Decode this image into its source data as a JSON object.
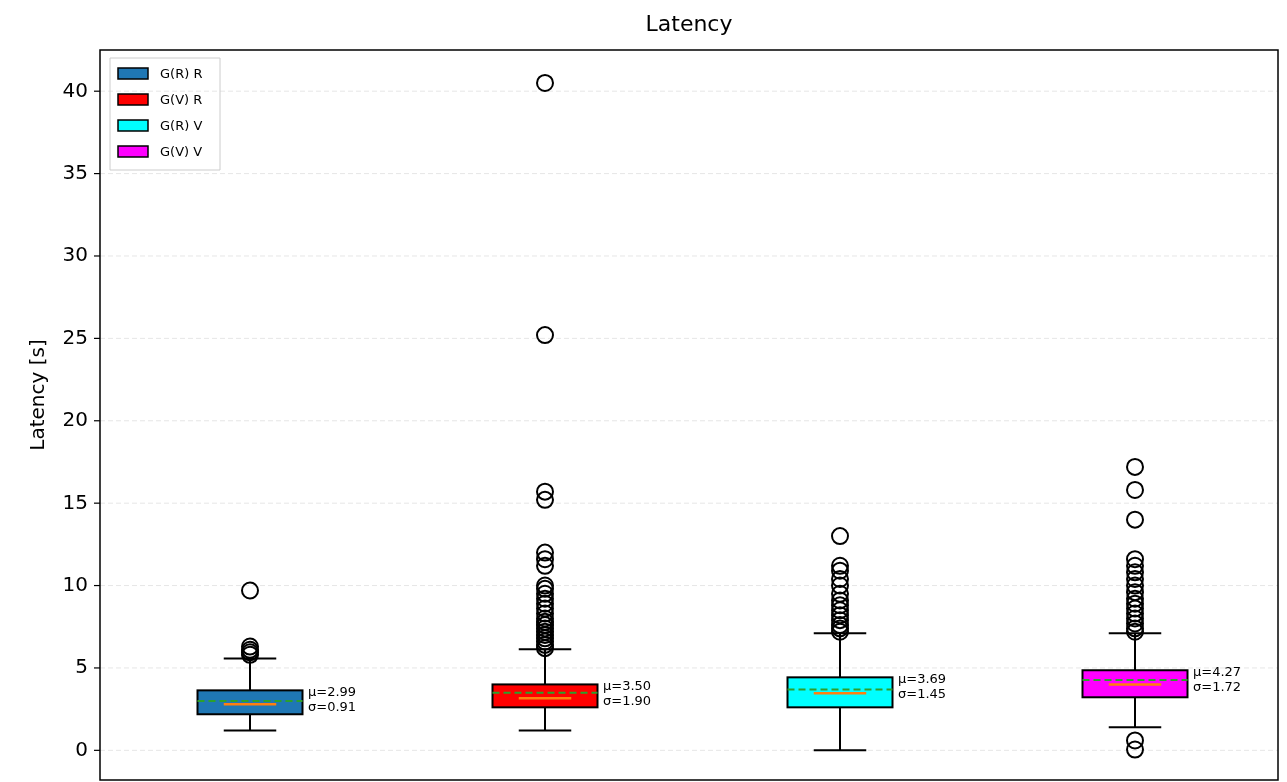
{
  "chart_data": {
    "type": "box",
    "title": "Latency",
    "ylabel": "Latency [s]",
    "categories": [
      null,
      null,
      null,
      null
    ],
    "ylim": [
      -1.8,
      42.5
    ],
    "yticks": [
      0,
      5,
      10,
      15,
      20,
      25,
      30,
      35,
      40
    ],
    "grid": "y",
    "legend": "top left",
    "tick_labels": "y",
    "series": [
      {
        "name": "G(R) R",
        "color": "#1f77b4",
        "boxes": [
          {
            "low": 1.2,
            "q1": 2.19,
            "median": 2.79,
            "q3": 3.64,
            "high": 5.58,
            "mean": 2.99,
            "outliers": [
              5.8,
              5.95,
              6.1,
              6.3,
              9.7
            ]
          },
          null,
          null,
          null
        ]
      },
      {
        "name": "G(V) R",
        "color": "#ff0000",
        "boxes": [
          null,
          {
            "low": 1.2,
            "q1": 2.61,
            "median": 3.16,
            "q3": 4.0,
            "high": 6.13,
            "mean": 3.5,
            "outliers": [
              6.2,
              6.4,
              6.6,
              6.8,
              7.0,
              7.2,
              7.4,
              7.6,
              7.8,
              8.0,
              8.3,
              8.6,
              8.9,
              9.2,
              9.5,
              9.8,
              10.0,
              11.2,
              11.6,
              12.0,
              15.2,
              15.7,
              25.2,
              40.5
            ]
          },
          null,
          null
        ]
      },
      {
        "name": "G(R) V",
        "color": "#00ffff",
        "boxes": [
          null,
          null,
          {
            "low": 0,
            "q1": 2.61,
            "median": 3.46,
            "q3": 4.43,
            "high": 7.1,
            "mean": 3.69,
            "outliers": [
              7.2,
              7.4,
              7.6,
              7.9,
              8.2,
              8.5,
              8.8,
              9.1,
              9.5,
              10.0,
              10.4,
              10.9,
              11.2,
              13.0
            ]
          },
          null
        ]
      },
      {
        "name": "G(V) V",
        "color": "#ff00ff",
        "boxes": [
          null,
          null,
          null,
          {
            "low": 1.4,
            "q1": 3.22,
            "median": 4.0,
            "q3": 4.86,
            "high": 7.1,
            "mean": 4.27,
            "outliers": [
              0.05,
              0.6,
              7.2,
              7.4,
              7.7,
              8.0,
              8.3,
              8.6,
              8.9,
              9.2,
              9.6,
              10.0,
              10.4,
              10.8,
              11.2,
              11.6,
              14.0,
              15.8,
              17.2
            ]
          }
        ]
      }
    ],
    "annotations": [
      "μ=2.99\nσ=0.91",
      "μ=3.50\nσ=1.90",
      "μ=3.69\nσ=1.45",
      "μ=4.27\nσ=1.72"
    ]
  }
}
